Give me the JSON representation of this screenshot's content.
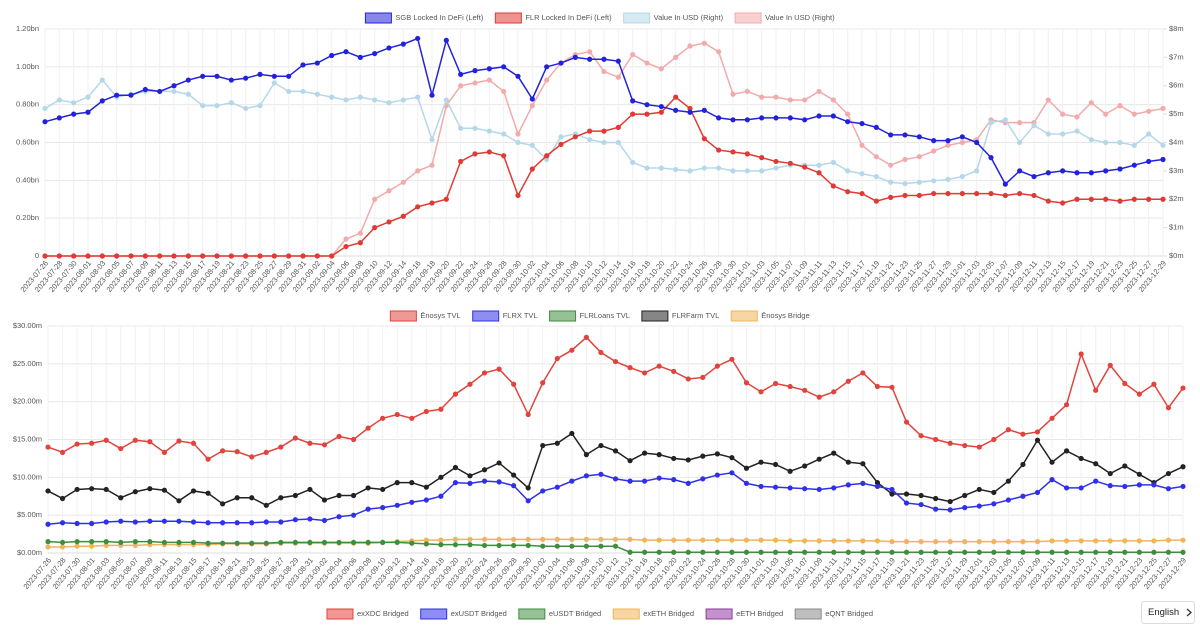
{
  "chart_data": [
    {
      "type": "line",
      "categories": [
        "2023-07-26",
        "2023-07-28",
        "2023-07-30",
        "2023-08-01",
        "2023-08-03",
        "2023-08-05",
        "2023-08-07",
        "2023-08-09",
        "2023-08-11",
        "2023-08-13",
        "2023-08-15",
        "2023-08-17",
        "2023-08-19",
        "2023-08-21",
        "2023-08-23",
        "2023-08-25",
        "2023-08-27",
        "2023-08-29",
        "2023-08-31",
        "2023-09-02",
        "2023-09-04",
        "2023-09-06",
        "2023-09-08",
        "2023-09-10",
        "2023-09-12",
        "2023-09-14",
        "2023-09-16",
        "2023-09-18",
        "2023-09-20",
        "2023-09-22",
        "2023-09-24",
        "2023-09-26",
        "2023-09-28",
        "2023-09-30",
        "2023-10-02",
        "2023-10-04",
        "2023-10-06",
        "2023-10-08",
        "2023-10-10",
        "2023-10-12",
        "2023-10-14",
        "2023-10-16",
        "2023-10-18",
        "2023-10-20",
        "2023-10-22",
        "2023-10-24",
        "2023-10-26",
        "2023-10-28",
        "2023-10-30",
        "2023-11-01",
        "2023-11-03",
        "2023-11-05",
        "2023-11-07",
        "2023-11-09",
        "2023-11-11",
        "2023-11-13",
        "2023-11-15",
        "2023-11-17",
        "2023-11-19",
        "2023-11-21",
        "2023-11-23",
        "2023-11-25",
        "2023-11-27",
        "2023-11-29",
        "2023-12-01",
        "2023-12-03",
        "2023-12-05",
        "2023-12-07",
        "2023-12-09",
        "2023-12-11",
        "2023-12-13",
        "2023-12-15",
        "2023-12-17",
        "2023-12-19",
        "2023-12-21",
        "2023-12-23",
        "2023-12-25",
        "2023-12-27",
        "2023-12-29"
      ],
      "series": [
        {
          "name": "SGB Locked In DeFi (Left)",
          "color": "#2222dd",
          "values": [
            0.71,
            0.73,
            0.75,
            0.76,
            0.82,
            0.85,
            0.85,
            0.88,
            0.87,
            0.9,
            0.93,
            0.95,
            0.95,
            0.93,
            0.94,
            0.96,
            0.95,
            0.95,
            1.01,
            1.02,
            1.06,
            1.08,
            1.05,
            1.07,
            1.1,
            1.12,
            1.15,
            0.85,
            1.14,
            0.96,
            0.98,
            0.99,
            1.0,
            0.95,
            0.83,
            1.0,
            1.02,
            1.05,
            1.04,
            1.04,
            1.03,
            0.82,
            0.8,
            0.79,
            0.77,
            0.76,
            0.77,
            0.73,
            0.72,
            0.72,
            0.73,
            0.73,
            0.73,
            0.72,
            0.74,
            0.74,
            0.71,
            0.7,
            0.68,
            0.64,
            0.64,
            0.63,
            0.61,
            0.61,
            0.63,
            0.6,
            0.52,
            0.38,
            0.45,
            0.42,
            0.44,
            0.45,
            0.44,
            0.44,
            0.45,
            0.46,
            0.48,
            0.5,
            0.51
          ]
        },
        {
          "name": "FLR Locked In DeFi (Left)",
          "color": "#e03a35",
          "values": [
            0,
            0,
            0,
            0,
            0,
            0,
            0,
            0,
            0,
            0,
            0,
            0,
            0,
            0,
            0,
            0,
            0,
            0,
            0,
            0,
            0,
            0.05,
            0.07,
            0.15,
            0.18,
            0.21,
            0.26,
            0.28,
            0.3,
            0.5,
            0.54,
            0.55,
            0.53,
            0.32,
            0.46,
            0.53,
            0.59,
            0.63,
            0.66,
            0.66,
            0.68,
            0.75,
            0.75,
            0.76,
            0.84,
            0.78,
            0.62,
            0.56,
            0.55,
            0.54,
            0.52,
            0.5,
            0.49,
            0.47,
            0.44,
            0.37,
            0.34,
            0.33,
            0.29,
            0.31,
            0.32,
            0.32,
            0.33,
            0.33,
            0.33,
            0.33,
            0.33,
            0.32,
            0.33,
            0.32,
            0.29,
            0.28,
            0.3,
            0.3,
            0.3,
            0.29,
            0.3,
            0.3,
            0.3
          ]
        },
        {
          "name": "Value In USD (Right)",
          "color": "#b5d8e8",
          "axis": "y2",
          "values": [
            5.2,
            5.5,
            5.4,
            5.6,
            6.2,
            5.6,
            5.7,
            5.8,
            5.8,
            5.8,
            5.7,
            5.3,
            5.3,
            5.4,
            5.2,
            5.3,
            6.1,
            5.8,
            5.8,
            5.7,
            5.6,
            5.5,
            5.6,
            5.5,
            5.4,
            5.5,
            5.6,
            4.1,
            5.5,
            4.5,
            4.5,
            4.4,
            4.3,
            4.0,
            3.9,
            3.4,
            4.2,
            4.3,
            4.1,
            4.0,
            4.0,
            3.3,
            3.1,
            3.1,
            3.05,
            3.0,
            3.1,
            3.1,
            3.0,
            3.0,
            3.0,
            3.1,
            3.2,
            3.2,
            3.2,
            3.3,
            3.0,
            2.9,
            2.8,
            2.6,
            2.55,
            2.6,
            2.65,
            2.7,
            2.8,
            3.0,
            4.7,
            4.8,
            4.0,
            4.6,
            4.3,
            4.3,
            4.4,
            4.1,
            4.0,
            4.0,
            3.9,
            4.3,
            3.9
          ]
        },
        {
          "name": "Value In USD (Right)",
          "color": "#f3aaaa",
          "axis": "y2",
          "values": [
            0,
            0,
            0,
            0,
            0,
            0,
            0,
            0,
            0,
            0,
            0,
            0,
            0,
            0,
            0,
            0,
            0,
            0,
            0,
            0,
            0,
            0.6,
            0.8,
            2.0,
            2.3,
            2.6,
            3.0,
            3.2,
            5.3,
            6.0,
            6.1,
            6.2,
            5.8,
            4.3,
            5.3,
            6.2,
            6.8,
            7.1,
            7.2,
            6.5,
            6.3,
            7.1,
            6.8,
            6.6,
            7.0,
            7.4,
            7.5,
            7.2,
            5.7,
            5.8,
            5.6,
            5.6,
            5.5,
            5.5,
            5.8,
            5.5,
            5.0,
            3.9,
            3.5,
            3.2,
            3.4,
            3.5,
            3.7,
            3.9,
            4.0,
            4.1,
            4.8,
            4.7,
            4.7,
            4.7,
            5.5,
            5.0,
            4.9,
            5.4,
            5.0,
            5.3,
            5.0,
            5.1,
            5.2
          ]
        }
      ],
      "ylim": [
        0,
        1.2
      ],
      "yticks": [
        0,
        {
          "value": 0.2,
          "label": "0.20bn"
        },
        {
          "value": 0.4,
          "label": "0.40bn"
        },
        {
          "value": 0.6,
          "label": "0.60bn"
        },
        {
          "value": 0.8,
          "label": "0.80bn"
        },
        {
          "value": 1.0,
          "label": "1.00bn"
        },
        {
          "value": 1.2,
          "label": "1.20bn"
        }
      ],
      "y2lim": [
        0,
        8
      ],
      "y2ticks": [
        {
          "value": 0,
          "label": "$0m"
        },
        {
          "value": 1,
          "label": "$1m"
        },
        {
          "value": 2,
          "label": "$2m"
        },
        {
          "value": 3,
          "label": "$3m"
        },
        {
          "value": 4,
          "label": "$4m"
        },
        {
          "value": 5,
          "label": "$5m"
        },
        {
          "value": 6,
          "label": "$6m"
        },
        {
          "value": 7,
          "label": "$7m"
        },
        {
          "value": 8,
          "label": "$8m"
        }
      ],
      "grid": true
    },
    {
      "type": "line",
      "categories": [
        "2023-07-26",
        "2023-07-28",
        "2023-07-30",
        "2023-08-01",
        "2023-08-03",
        "2023-08-05",
        "2023-08-07",
        "2023-08-09",
        "2023-08-11",
        "2023-08-13",
        "2023-08-15",
        "2023-08-17",
        "2023-08-19",
        "2023-08-21",
        "2023-08-23",
        "2023-08-25",
        "2023-08-27",
        "2023-08-29",
        "2023-08-31",
        "2023-09-02",
        "2023-09-04",
        "2023-09-06",
        "2023-09-08",
        "2023-09-10",
        "2023-09-12",
        "2023-09-14",
        "2023-09-16",
        "2023-09-18",
        "2023-09-20",
        "2023-09-22",
        "2023-09-24",
        "2023-09-26",
        "2023-09-28",
        "2023-09-30",
        "2023-10-02",
        "2023-10-04",
        "2023-10-06",
        "2023-10-08",
        "2023-10-10",
        "2023-10-12",
        "2023-10-14",
        "2023-10-16",
        "2023-10-18",
        "2023-10-20",
        "2023-10-22",
        "2023-10-24",
        "2023-10-26",
        "2023-10-28",
        "2023-10-30",
        "2023-11-01",
        "2023-11-03",
        "2023-11-05",
        "2023-11-07",
        "2023-11-09",
        "2023-11-11",
        "2023-11-13",
        "2023-11-15",
        "2023-11-17",
        "2023-11-19",
        "2023-11-21",
        "2023-11-23",
        "2023-11-25",
        "2023-11-27",
        "2023-11-29",
        "2023-12-01",
        "2023-12-03",
        "2023-12-05",
        "2023-12-07",
        "2023-12-09",
        "2023-12-11",
        "2023-12-13",
        "2023-12-15",
        "2023-12-17",
        "2023-12-19",
        "2023-12-21",
        "2023-12-23",
        "2023-12-25",
        "2023-12-27",
        "2023-12-29"
      ],
      "series": [
        {
          "name": "Ēnosys TVL",
          "color": "#e2433c",
          "values": [
            14.0,
            13.3,
            14.4,
            14.5,
            14.9,
            13.8,
            14.9,
            14.7,
            13.3,
            14.8,
            14.5,
            12.4,
            13.5,
            13.4,
            12.7,
            13.3,
            14.0,
            15.2,
            14.5,
            14.3,
            15.4,
            15.0,
            16.5,
            17.8,
            18.3,
            17.8,
            18.7,
            19.0,
            21.0,
            22.3,
            23.8,
            24.3,
            22.3,
            18.3,
            22.5,
            25.7,
            26.8,
            28.5,
            26.5,
            25.3,
            24.5,
            23.8,
            24.7,
            24.0,
            23.0,
            23.2,
            24.7,
            25.6,
            22.5,
            21.3,
            22.4,
            22.0,
            21.5,
            20.6,
            21.3,
            22.7,
            23.8,
            22.0,
            21.9,
            17.3,
            15.5,
            15.0,
            14.5,
            14.2,
            14.0,
            15.0,
            16.3,
            15.7,
            16.0,
            17.8,
            19.6,
            26.3,
            21.5,
            24.8,
            22.4,
            21.0,
            22.3,
            19.2,
            21.8
          ]
        },
        {
          "name": "FLRX TVL",
          "color": "#3030e8",
          "values": [
            3.8,
            4.0,
            3.9,
            3.9,
            4.1,
            4.2,
            4.1,
            4.2,
            4.2,
            4.2,
            4.1,
            4.0,
            4.0,
            4.0,
            4.0,
            4.1,
            4.1,
            4.4,
            4.5,
            4.3,
            4.8,
            5.0,
            5.8,
            6.0,
            6.3,
            6.7,
            7.0,
            7.5,
            9.3,
            9.2,
            9.5,
            9.4,
            8.9,
            6.9,
            8.2,
            8.7,
            9.5,
            10.2,
            10.4,
            9.8,
            9.5,
            9.5,
            9.9,
            9.7,
            9.2,
            9.8,
            10.3,
            10.6,
            9.2,
            8.8,
            8.7,
            8.6,
            8.5,
            8.4,
            8.6,
            9.0,
            9.2,
            8.8,
            8.4,
            6.6,
            6.4,
            5.8,
            5.7,
            6.0,
            6.2,
            6.5,
            7.0,
            7.5,
            8.0,
            9.7,
            8.6,
            8.6,
            9.5,
            8.9,
            8.8,
            9.0,
            9.0,
            8.5,
            8.8
          ]
        },
        {
          "name": "FLRLoans TVL",
          "color": "#3e8e3e",
          "values": [
            1.5,
            1.4,
            1.5,
            1.5,
            1.5,
            1.4,
            1.5,
            1.5,
            1.4,
            1.4,
            1.4,
            1.3,
            1.3,
            1.3,
            1.3,
            1.3,
            1.4,
            1.4,
            1.4,
            1.4,
            1.4,
            1.4,
            1.4,
            1.4,
            1.4,
            1.3,
            1.2,
            1.1,
            1.1,
            1.1,
            1.0,
            1.0,
            1.0,
            1.0,
            0.9,
            0.9,
            0.9,
            0.9,
            0.9,
            0.9,
            0.1,
            0.1,
            0.1,
            0.1,
            0.1,
            0.1,
            0.1,
            0.1,
            0.1,
            0.1,
            0.1,
            0.1,
            0.1,
            0.1,
            0.1,
            0.1,
            0.1,
            0.1,
            0.1,
            0.1,
            0.1,
            0.1,
            0.1,
            0.1,
            0.1,
            0.1,
            0.1,
            0.1,
            0.1,
            0.1,
            0.1,
            0.1,
            0.1,
            0.1,
            0.1,
            0.1,
            0.1,
            0.1,
            0.1
          ]
        },
        {
          "name": "FLRFarm TVL",
          "color": "#222222",
          "values": [
            8.2,
            7.2,
            8.4,
            8.5,
            8.4,
            7.3,
            8.1,
            8.5,
            8.3,
            6.9,
            8.2,
            7.9,
            6.5,
            7.3,
            7.3,
            6.3,
            7.3,
            7.6,
            8.4,
            7.0,
            7.6,
            7.6,
            8.6,
            8.4,
            9.3,
            9.3,
            8.7,
            10.0,
            11.3,
            10.2,
            11.0,
            11.9,
            10.3,
            8.6,
            14.2,
            14.5,
            15.8,
            13.0,
            14.2,
            13.5,
            12.2,
            13.2,
            13.0,
            12.5,
            12.3,
            12.8,
            13.1,
            12.6,
            11.2,
            12.0,
            11.7,
            10.8,
            11.5,
            12.4,
            13.2,
            12.0,
            11.8,
            9.3,
            7.8,
            7.8,
            7.6,
            7.2,
            6.8,
            7.6,
            8.4,
            8.0,
            9.5,
            11.7,
            14.9,
            12.0,
            13.5,
            12.5,
            11.8,
            10.5,
            11.5,
            10.4,
            9.3,
            10.5,
            11.4
          ]
        },
        {
          "name": "Ēnosys Bridge",
          "color": "#f0b45a",
          "values": [
            0.8,
            0.8,
            0.9,
            0.9,
            1.0,
            1.0,
            1.0,
            1.1,
            1.1,
            1.1,
            1.1,
            1.1,
            1.2,
            1.2,
            1.2,
            1.2,
            1.3,
            1.3,
            1.3,
            1.3,
            1.3,
            1.3,
            1.3,
            1.4,
            1.5,
            1.6,
            1.7,
            1.7,
            1.8,
            1.8,
            1.8,
            1.8,
            1.8,
            1.8,
            1.8,
            1.8,
            1.8,
            1.8,
            1.8,
            1.8,
            1.8,
            1.7,
            1.7,
            1.7,
            1.7,
            1.7,
            1.7,
            1.7,
            1.7,
            1.7,
            1.7,
            1.6,
            1.6,
            1.6,
            1.6,
            1.6,
            1.6,
            1.6,
            1.5,
            1.5,
            1.5,
            1.5,
            1.5,
            1.5,
            1.5,
            1.5,
            1.5,
            1.5,
            1.5,
            1.6,
            1.6,
            1.6,
            1.6,
            1.6,
            1.6,
            1.6,
            1.6,
            1.7,
            1.7
          ]
        }
      ],
      "ylim": [
        0,
        30
      ],
      "yticks": [
        {
          "value": 0,
          "label": "$0.00m"
        },
        {
          "value": 5,
          "label": "$5.00m"
        },
        {
          "value": 10,
          "label": "$10.00m"
        },
        {
          "value": 15,
          "label": "$15.00m"
        },
        {
          "value": 20,
          "label": "$20.00m"
        },
        {
          "value": 25,
          "label": "$25.00m"
        },
        {
          "value": 30,
          "label": "$30.00m"
        }
      ],
      "grid": true
    },
    {
      "type": "line",
      "series": [
        {
          "name": "exXDC Bridged",
          "color": "#e2433c"
        },
        {
          "name": "exUSDT Bridged",
          "color": "#3030e8"
        },
        {
          "name": "eUSDT Bridged",
          "color": "#3e8e3e"
        },
        {
          "name": "exETH Bridged",
          "color": "#f0b45a"
        },
        {
          "name": "eETH Bridged",
          "color": "#8e3a9e"
        },
        {
          "name": "eQNT Bridged",
          "color": "#888888"
        }
      ]
    }
  ],
  "language_selector": {
    "label": "English"
  }
}
